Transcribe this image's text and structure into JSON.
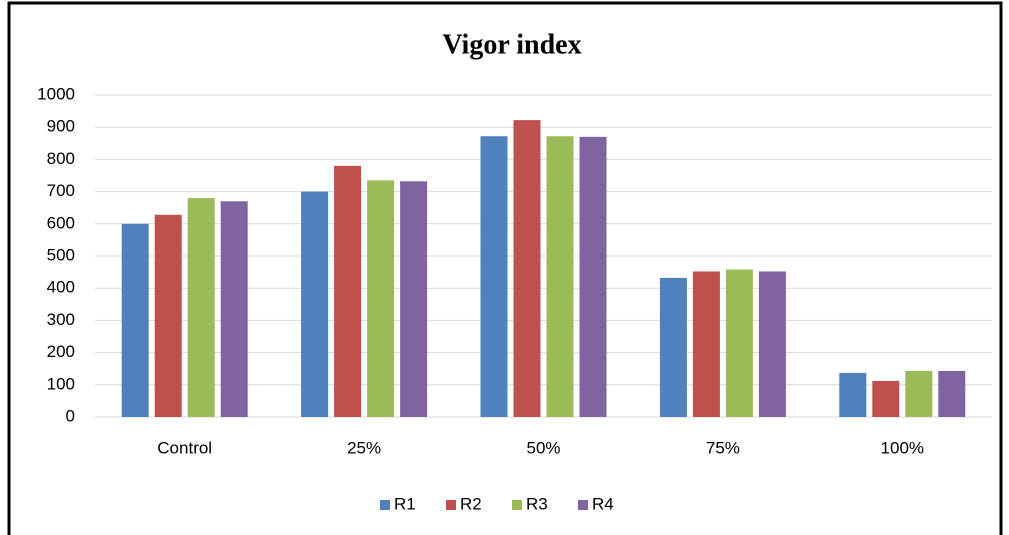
{
  "chart_data": {
    "type": "bar",
    "title": "Vigor index",
    "categories": [
      "Control",
      "25%",
      "50%",
      "75%",
      "100%"
    ],
    "series": [
      {
        "name": "R1",
        "color": "#4f81bd",
        "values": [
          600,
          700,
          872,
          432,
          137
        ]
      },
      {
        "name": "R2",
        "color": "#c0504d",
        "values": [
          628,
          780,
          922,
          452,
          112
        ]
      },
      {
        "name": "R3",
        "color": "#9bbb59",
        "values": [
          680,
          735,
          872,
          458,
          143
        ]
      },
      {
        "name": "R4",
        "color": "#8064a2",
        "values": [
          670,
          732,
          870,
          452,
          143
        ]
      }
    ],
    "ylim": [
      0,
      1000
    ],
    "yticks": [
      0,
      100,
      200,
      300,
      400,
      500,
      600,
      700,
      800,
      900,
      1000
    ],
    "grid": true,
    "legend": "bottom"
  }
}
